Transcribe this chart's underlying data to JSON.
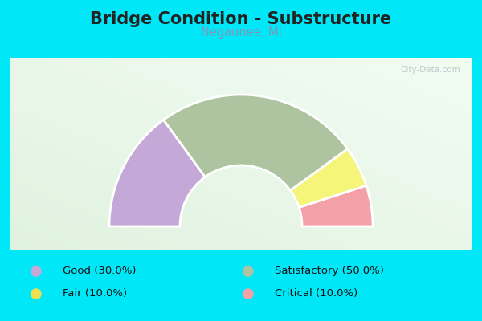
{
  "title": "Bridge Condition - Substructure",
  "subtitle": "Negaunee, MI",
  "segments": [
    {
      "label": "Good (30.0%)",
      "pct": 30,
      "color": "#c4a8d8"
    },
    {
      "label": "Satisfactory (50.0%)",
      "pct": 50,
      "color": "#aec4a0"
    },
    {
      "label": "Fair (10.0%)",
      "pct": 10,
      "color": "#f5f57a"
    },
    {
      "label": "Critical (10.0%)",
      "pct": 10,
      "color": "#f4a0a8"
    }
  ],
  "bg_outer": "#00e8f8",
  "bg_chart": "#dff0dd",
  "title_color": "#222222",
  "subtitle_color": "#7a9ab8",
  "ring_inner_r": 0.38,
  "ring_outer_r": 0.82,
  "legend": [
    {
      "label": "Good (30.0%)",
      "color": "#c4a8d8"
    },
    {
      "label": "Fair (10.0%)",
      "color": "#f0e050"
    },
    {
      "label": "Satisfactory (50.0%)",
      "color": "#aec4a0"
    },
    {
      "label": "Critical (10.0%)",
      "color": "#f4a0a8"
    }
  ]
}
